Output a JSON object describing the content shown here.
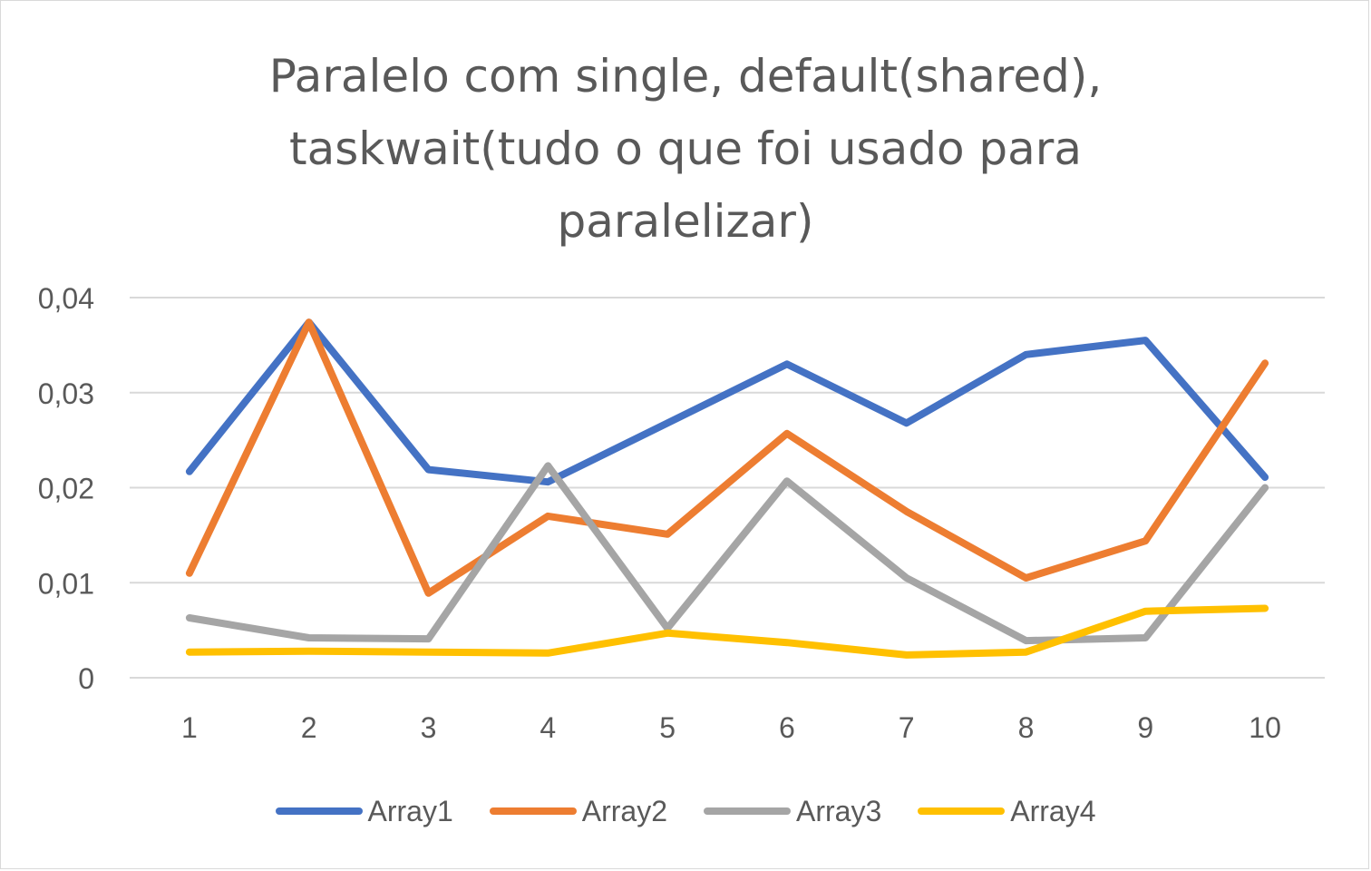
{
  "chart_data": {
    "type": "line",
    "title_lines": [
      "Paralelo com single, default(shared),",
      "taskwait(tudo o que foi usado para",
      "paralelizar)"
    ],
    "categories": [
      "1",
      "2",
      "3",
      "4",
      "5",
      "6",
      "7",
      "8",
      "9",
      "10"
    ],
    "ylim": [
      0,
      0.04
    ],
    "yticks": [
      0,
      0.01,
      0.02,
      0.03,
      0.04
    ],
    "ytick_labels": [
      "0",
      "0,01",
      "0,02",
      "0,03",
      "0,04"
    ],
    "grid": true,
    "legend_position": "bottom",
    "series": [
      {
        "name": "Array1",
        "color": "#4472C4",
        "values": [
          0.0217,
          0.0374,
          0.0219,
          0.0206,
          0.0268,
          0.033,
          0.0268,
          0.034,
          0.0355,
          0.0211
        ]
      },
      {
        "name": "Array2",
        "color": "#ED7D31",
        "values": [
          0.011,
          0.0374,
          0.0089,
          0.017,
          0.0151,
          0.0257,
          0.0175,
          0.0105,
          0.0144,
          0.0331
        ]
      },
      {
        "name": "Array3",
        "color": "#A5A5A5",
        "values": [
          0.0063,
          0.0042,
          0.0041,
          0.0223,
          0.0052,
          0.0207,
          0.0105,
          0.0039,
          0.0042,
          0.02
        ]
      },
      {
        "name": "Array4",
        "color": "#FFC000",
        "values": [
          0.0027,
          0.0028,
          0.0027,
          0.0026,
          0.0047,
          0.0037,
          0.0024,
          0.0027,
          0.007,
          0.0073
        ]
      }
    ]
  }
}
